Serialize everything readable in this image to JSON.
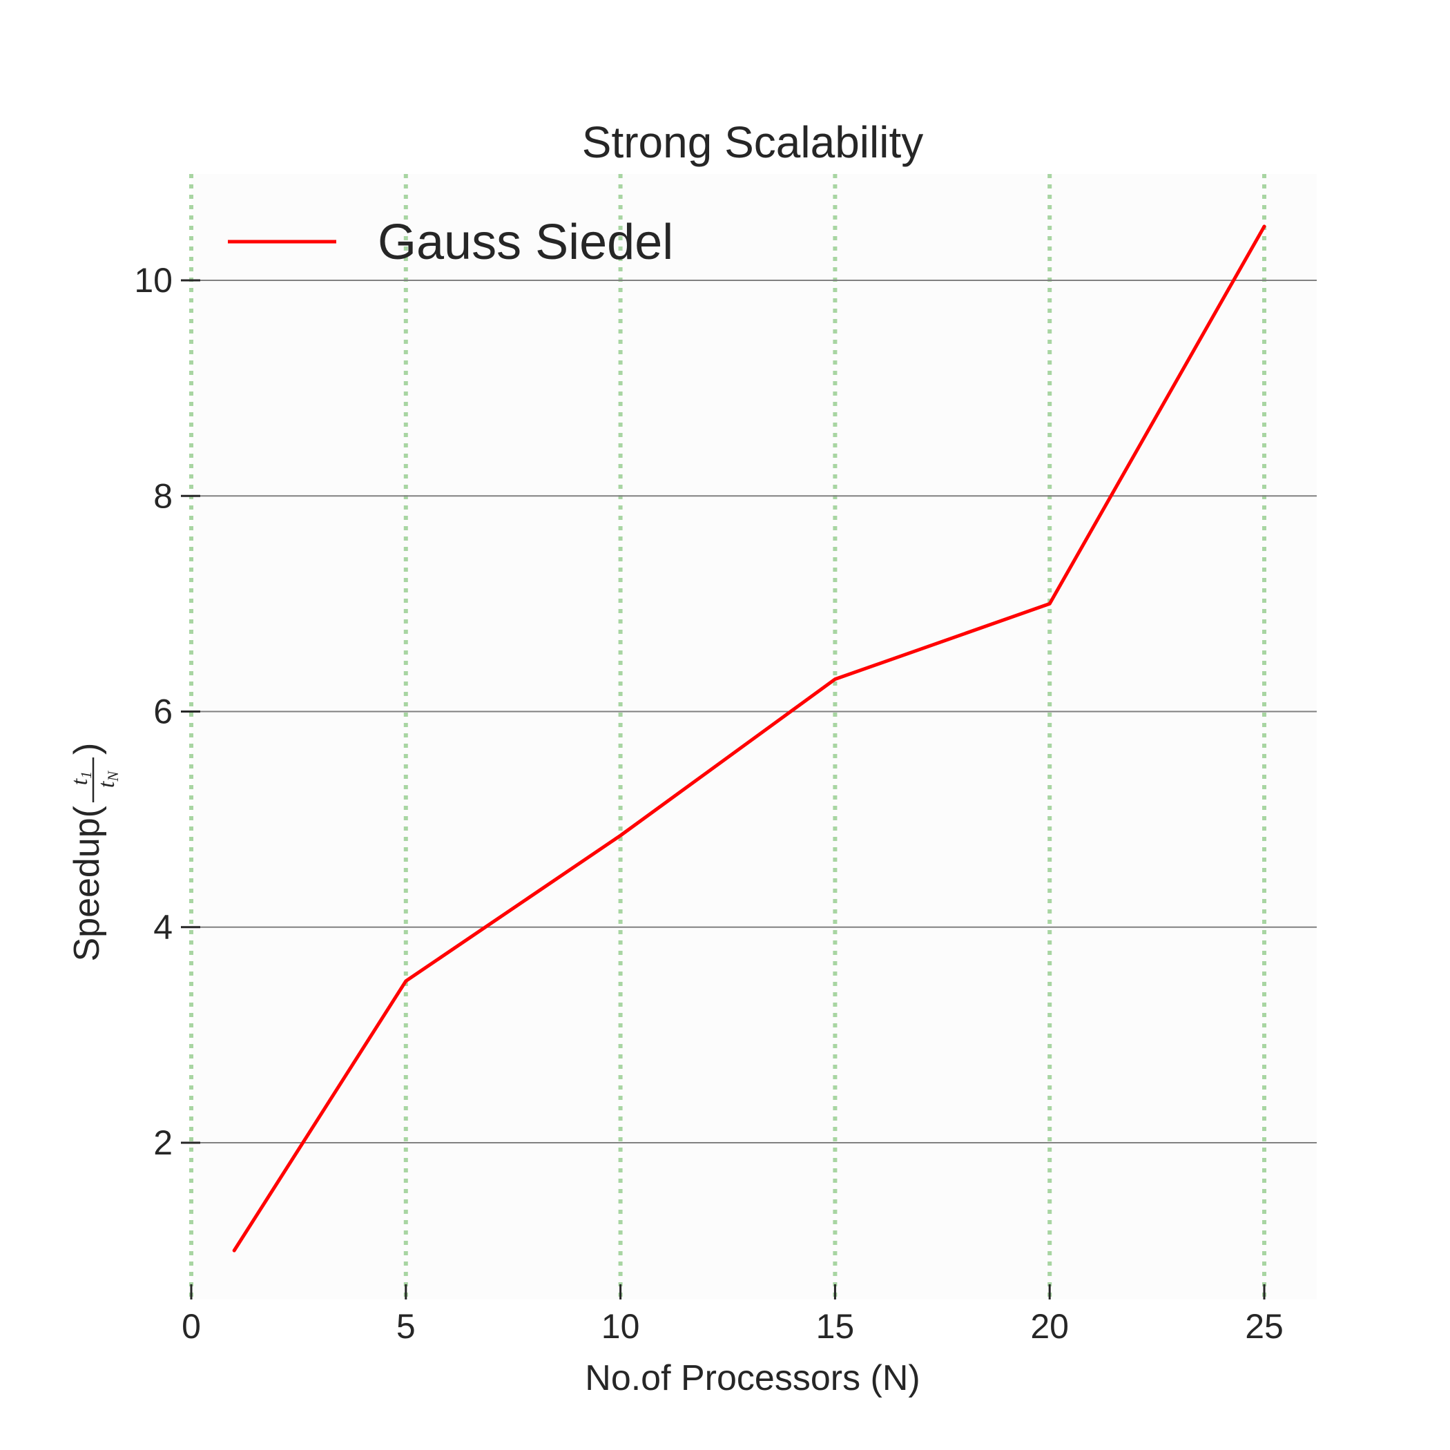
{
  "chart_data": {
    "type": "line",
    "title": "Strong Scalability",
    "xlabel": "No.of Processors (N)",
    "ylabel": {
      "prefix": "Speedup(",
      "numerator": "t",
      "numerator_sub": "1",
      "denominator": "t",
      "denominator_sub": "N",
      "suffix": ")"
    },
    "xlim": [
      0,
      26.2
    ],
    "ylim": [
      0.75,
      11.2
    ],
    "xticks": [
      0,
      5,
      10,
      15,
      20,
      25
    ],
    "yticks": [
      2,
      4,
      6,
      8,
      10
    ],
    "x_grid": "dotted",
    "y_grid": "solid",
    "legend_position": "upper-left",
    "series": [
      {
        "name": "Gauss Siedel",
        "color": "#ff0000",
        "x": [
          1,
          5,
          10,
          15,
          20,
          25
        ],
        "y": [
          1.0,
          3.5,
          4.85,
          6.3,
          7.0,
          10.5
        ]
      }
    ],
    "colors": {
      "x_grid": "#a8d5a2",
      "y_grid": "#808080",
      "text": "#262626"
    }
  }
}
